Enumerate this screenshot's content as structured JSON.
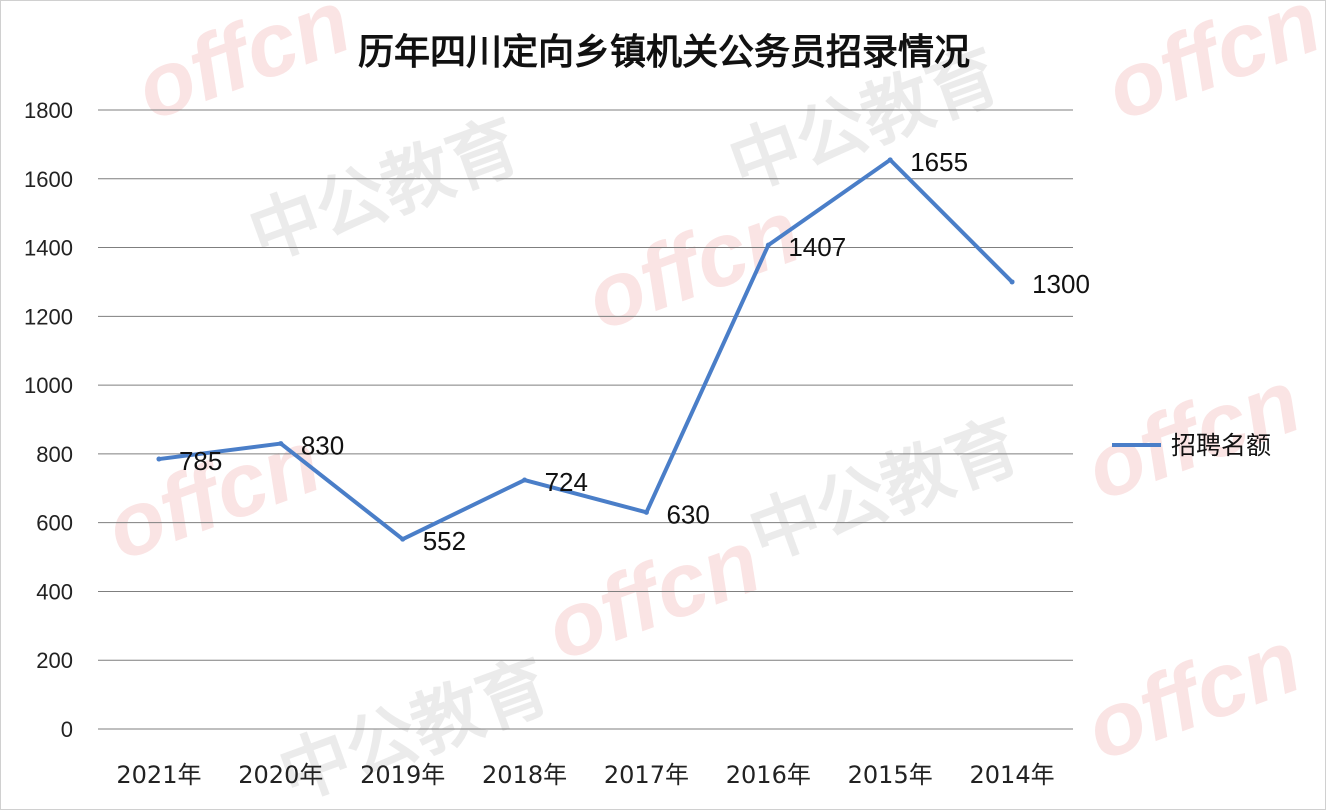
{
  "watermark": {
    "brand": "offcn",
    "name": "中公教育"
  },
  "chart_data": {
    "type": "line",
    "title": "历年四川定向乡镇机关公务员招录情况",
    "categories": [
      "2021年",
      "2020年",
      "2019年",
      "2018年",
      "2017年",
      "2016年",
      "2015年",
      "2014年"
    ],
    "series": [
      {
        "name": "招聘名额",
        "values": [
          785,
          830,
          552,
          724,
          630,
          1407,
          1655,
          1300
        ],
        "color": "#4a7ec8"
      }
    ],
    "ylim": [
      0,
      1800
    ],
    "yticks": [
      0,
      200,
      400,
      600,
      800,
      1000,
      1200,
      1400,
      1600,
      1800
    ],
    "grid": true,
    "legend": "right",
    "data_labels": true
  }
}
